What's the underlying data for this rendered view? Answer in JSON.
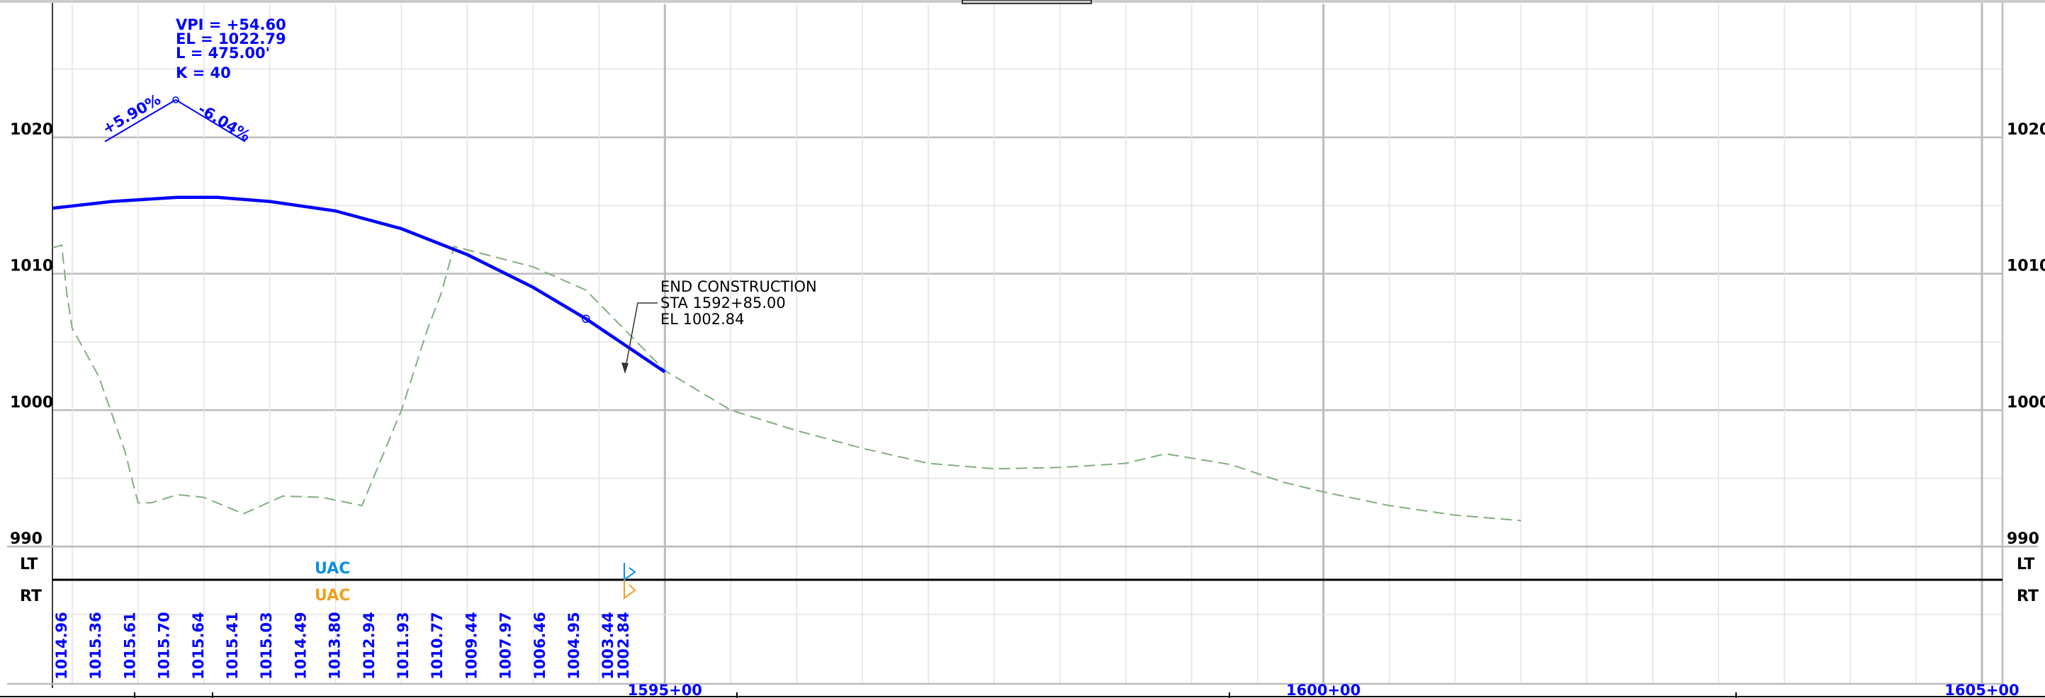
{
  "chart_data": {
    "type": "line",
    "title": "",
    "xlabel": "",
    "ylabel": "",
    "elevation_ticks": [
      "1020",
      "1010",
      "1000",
      "990"
    ],
    "station_ticks": [
      "1595+00",
      "1600+00",
      "1605+00"
    ],
    "ylim": [
      990,
      1020
    ],
    "offset_labels": {
      "left": "LT",
      "right": "RT"
    },
    "utility_labels": [
      {
        "text": "UAC",
        "side": "LT",
        "color": "#0a8fe0"
      },
      {
        "text": "UAC",
        "side": "RT",
        "color": "#f0a020"
      }
    ],
    "vpi": {
      "station_label": "VPI = +54.60",
      "elevation_label": "EL = 1022.79",
      "length_label": "L = 475.00'",
      "k_label": "K = 40",
      "grade_in": "+5.90%",
      "grade_out": "-6.04%"
    },
    "end_construction": {
      "line1": "END CONSTRUCTION",
      "line2": "STA 1592+85.00",
      "line3": "EL 1002.84"
    },
    "proposed_profile": {
      "name": "",
      "color": "#0000ff",
      "points": [
        [
          1590.35,
          1014.8
        ],
        [
          1590.8,
          1015.3
        ],
        [
          1591.3,
          1015.6
        ],
        [
          1591.6,
          1015.6
        ],
        [
          1592.0,
          1015.3
        ],
        [
          1592.5,
          1014.6
        ],
        [
          1593.0,
          1013.3
        ],
        [
          1593.5,
          1011.4
        ],
        [
          1594.0,
          1009.0
        ],
        [
          1594.4,
          1006.7
        ],
        [
          1595.0,
          1002.8
        ]
      ]
    },
    "existing_ground": {
      "name": "",
      "color": "#7fb07f",
      "points": [
        [
          1590.35,
          1011.9
        ],
        [
          1590.42,
          1012.1
        ],
        [
          1590.46,
          1008.5
        ],
        [
          1590.5,
          1006.0
        ],
        [
          1590.7,
          1002.5
        ],
        [
          1590.9,
          997.0
        ],
        [
          1591.0,
          993.2
        ],
        [
          1591.1,
          993.2
        ],
        [
          1591.3,
          993.8
        ],
        [
          1591.5,
          993.6
        ],
        [
          1591.8,
          992.4
        ],
        [
          1592.1,
          993.7
        ],
        [
          1592.4,
          993.6
        ],
        [
          1592.7,
          993.0
        ],
        [
          1593.0,
          1000.0
        ],
        [
          1593.2,
          1006.0
        ],
        [
          1593.3,
          1008.5
        ],
        [
          1593.4,
          1012.0
        ],
        [
          1594.0,
          1010.5
        ],
        [
          1594.4,
          1008.8
        ],
        [
          1595.0,
          1002.9
        ],
        [
          1595.5,
          1000.0
        ],
        [
          1596.0,
          998.5
        ],
        [
          1596.5,
          997.2
        ],
        [
          1597.0,
          996.1
        ],
        [
          1597.5,
          995.7
        ],
        [
          1598.0,
          995.8
        ],
        [
          1598.5,
          996.1
        ],
        [
          1598.8,
          996.8
        ],
        [
          1599.3,
          996.0
        ],
        [
          1599.7,
          994.7
        ],
        [
          1600.0,
          994.0
        ],
        [
          1600.5,
          993.0
        ],
        [
          1601.0,
          992.3
        ],
        [
          1601.5,
          991.9
        ]
      ]
    },
    "profile_elevations": [
      "1014.96",
      "1015.36",
      "1015.61",
      "1015.70",
      "1015.64",
      "1015.41",
      "1015.03",
      "1014.49",
      "1013.80",
      "1012.94",
      "1011.93",
      "1010.77",
      "1009.44",
      "1007.97",
      "1006.46",
      "1004.95",
      "1003.44",
      "1002.84"
    ]
  }
}
